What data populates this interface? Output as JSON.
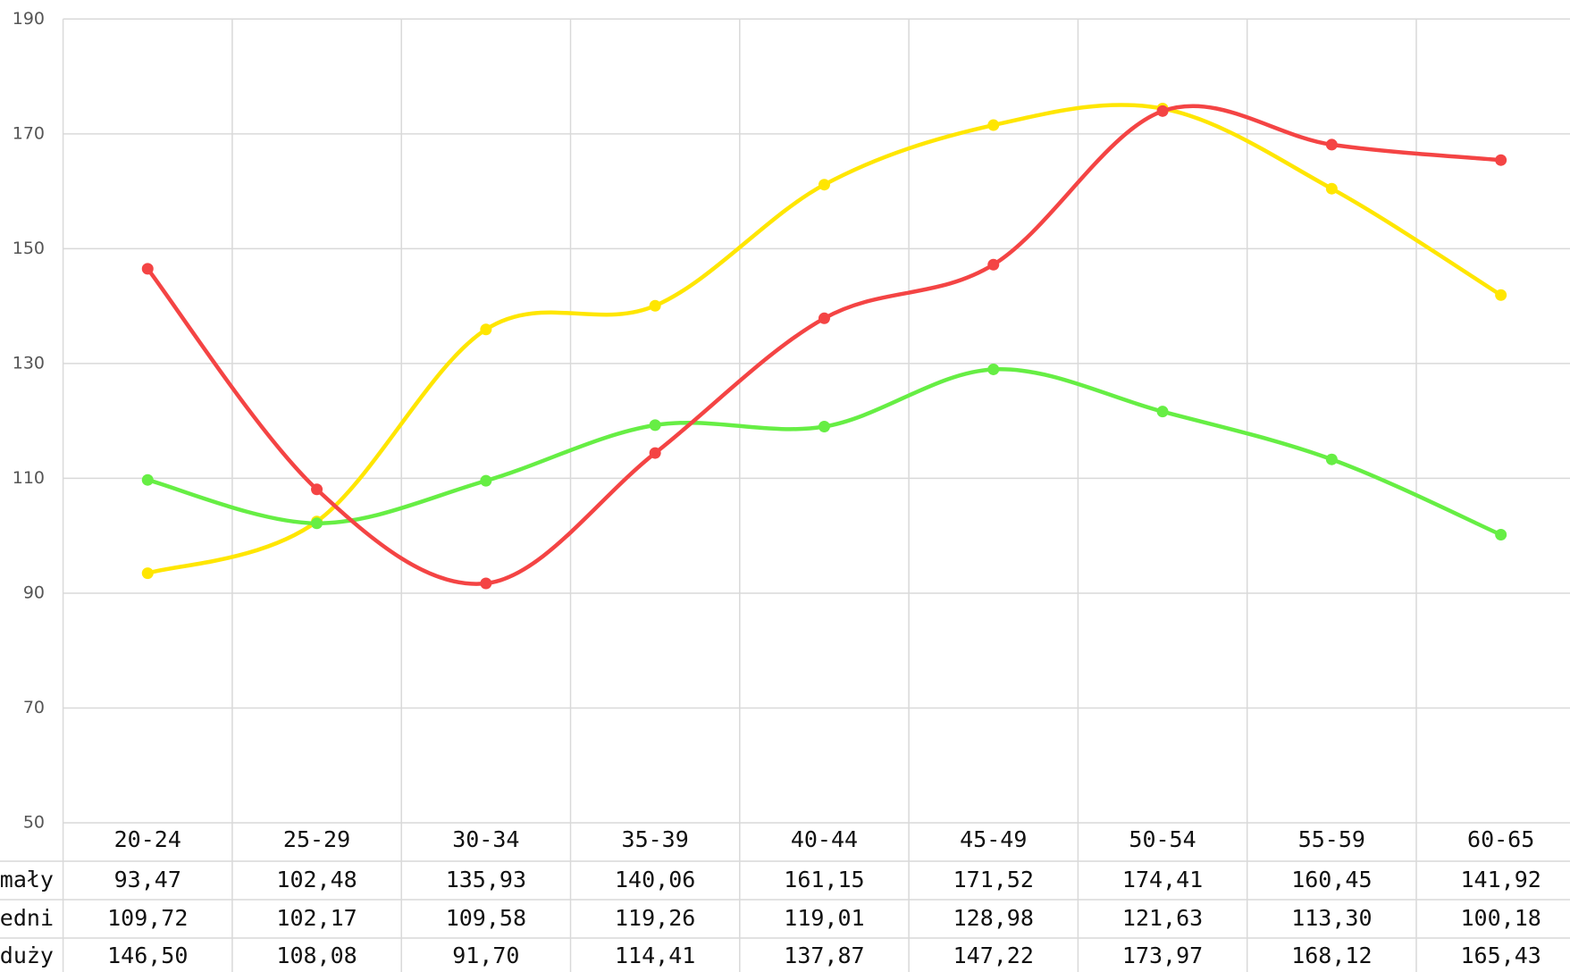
{
  "chart_data": {
    "type": "line",
    "categories": [
      "20-24",
      "25-29",
      "30-34",
      "35-39",
      "40-44",
      "45-49",
      "50-54",
      "55-59",
      "60-65"
    ],
    "series": [
      {
        "name": "mały",
        "color": "#ffe600",
        "values": [
          93.47,
          102.48,
          135.93,
          140.06,
          161.15,
          171.52,
          174.41,
          160.45,
          141.92
        ],
        "value_labels": [
          "93,47",
          "102,48",
          "135,93",
          "140,06",
          "161,15",
          "171,52",
          "174,41",
          "160,45",
          "141,92"
        ]
      },
      {
        "name": "średni",
        "color": "#66ee44",
        "values": [
          109.72,
          102.17,
          109.58,
          119.26,
          119.01,
          128.98,
          121.63,
          113.3,
          100.18
        ],
        "value_labels": [
          "109,72",
          "102,17",
          "109,58",
          "119,26",
          "119,01",
          "128,98",
          "121,63",
          "113,30",
          "100,18"
        ]
      },
      {
        "name": "duży",
        "color": "#f44444",
        "values": [
          146.5,
          108.08,
          91.7,
          114.41,
          137.87,
          147.22,
          173.97,
          168.12,
          165.43
        ],
        "value_labels": [
          "146,50",
          "108,08",
          "91,70",
          "114,41",
          "137,87",
          "147,22",
          "173,97",
          "168,12",
          "165,43"
        ]
      }
    ],
    "ylim": [
      50,
      190
    ],
    "yticks": [
      50,
      70,
      90,
      110,
      130,
      150,
      170,
      190
    ],
    "grid": true
  }
}
